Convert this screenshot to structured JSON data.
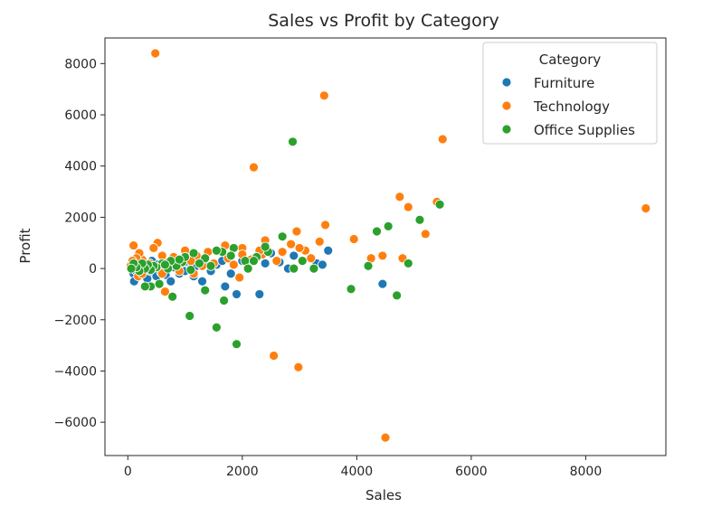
{
  "chart_data": {
    "type": "scatter",
    "title": "Sales vs Profit by Category",
    "xlabel": "Sales",
    "ylabel": "Profit",
    "xlim": [
      -400,
      9400
    ],
    "ylim": [
      -7300,
      9000
    ],
    "xticks": [
      0,
      2000,
      4000,
      6000,
      8000
    ],
    "yticks": [
      -6000,
      -4000,
      -2000,
      0,
      2000,
      4000,
      6000,
      8000
    ],
    "grid": false,
    "legend": {
      "title": "Category",
      "placement": "top-right"
    },
    "series": [
      {
        "name": "Furniture",
        "color": "#1f77b4",
        "points": [
          [
            80,
            50
          ],
          [
            100,
            -200
          ],
          [
            110,
            -500
          ],
          [
            130,
            350
          ],
          [
            150,
            -100
          ],
          [
            160,
            120
          ],
          [
            180,
            20
          ],
          [
            200,
            -300
          ],
          [
            220,
            200
          ],
          [
            250,
            -50
          ],
          [
            270,
            80
          ],
          [
            300,
            -200
          ],
          [
            320,
            150
          ],
          [
            340,
            -400
          ],
          [
            360,
            50
          ],
          [
            380,
            250
          ],
          [
            400,
            -100
          ],
          [
            420,
            300
          ],
          [
            450,
            -50
          ],
          [
            480,
            100
          ],
          [
            500,
            -300
          ],
          [
            520,
            150
          ],
          [
            550,
            50
          ],
          [
            580,
            -150
          ],
          [
            620,
            200
          ],
          [
            660,
            -250
          ],
          [
            700,
            100
          ],
          [
            750,
            -500
          ],
          [
            800,
            50
          ],
          [
            850,
            300
          ],
          [
            900,
            -200
          ],
          [
            950,
            150
          ],
          [
            1000,
            -100
          ],
          [
            1050,
            250
          ],
          [
            1100,
            0
          ],
          [
            1150,
            -300
          ],
          [
            1200,
            100
          ],
          [
            1300,
            -500
          ],
          [
            1350,
            200
          ],
          [
            1450,
            -100
          ],
          [
            1550,
            150
          ],
          [
            1650,
            300
          ],
          [
            1700,
            -700
          ],
          [
            1800,
            -200
          ],
          [
            1900,
            -1000
          ],
          [
            2000,
            300
          ],
          [
            2100,
            100
          ],
          [
            2200,
            400
          ],
          [
            2300,
            -1000
          ],
          [
            2400,
            200
          ],
          [
            2500,
            600
          ],
          [
            2650,
            250
          ],
          [
            2800,
            0
          ],
          [
            2900,
            500
          ],
          [
            3300,
            200
          ],
          [
            3400,
            150
          ],
          [
            3500,
            700
          ],
          [
            4450,
            -600
          ]
        ]
      },
      {
        "name": "Technology",
        "color": "#ff7f0e",
        "points": [
          [
            480,
            8400
          ],
          [
            3430,
            6750
          ],
          [
            5500,
            5050
          ],
          [
            2200,
            3950
          ],
          [
            4750,
            2800
          ],
          [
            5400,
            2600
          ],
          [
            4900,
            2400
          ],
          [
            5200,
            1350
          ],
          [
            9050,
            2350
          ],
          [
            3450,
            1700
          ],
          [
            2950,
            1450
          ],
          [
            3950,
            1150
          ],
          [
            4450,
            500
          ],
          [
            4250,
            400
          ],
          [
            4800,
            400
          ],
          [
            3350,
            1050
          ],
          [
            3100,
            700
          ],
          [
            2850,
            950
          ],
          [
            2400,
            1100
          ],
          [
            2000,
            800
          ],
          [
            1700,
            900
          ],
          [
            1400,
            650
          ],
          [
            1200,
            500
          ],
          [
            1000,
            700
          ],
          [
            800,
            450
          ],
          [
            700,
            250
          ],
          [
            600,
            500
          ],
          [
            520,
            1000
          ],
          [
            450,
            800
          ],
          [
            380,
            200
          ],
          [
            300,
            100
          ],
          [
            250,
            350
          ],
          [
            200,
            600
          ],
          [
            150,
            400
          ],
          [
            100,
            900
          ],
          [
            80,
            300
          ],
          [
            50,
            100
          ],
          [
            180,
            -300
          ],
          [
            250,
            -200
          ],
          [
            600,
            -200
          ],
          [
            650,
            -900
          ],
          [
            900,
            -100
          ],
          [
            1100,
            300
          ],
          [
            1300,
            100
          ],
          [
            1500,
            200
          ],
          [
            1750,
            400
          ],
          [
            1950,
            -350
          ],
          [
            2150,
            350
          ],
          [
            2350,
            550
          ],
          [
            2600,
            300
          ],
          [
            3000,
            800
          ],
          [
            3200,
            400
          ],
          [
            2550,
            -3400
          ],
          [
            2980,
            -3850
          ],
          [
            4500,
            -6600
          ],
          [
            2000,
            550
          ],
          [
            2300,
            700
          ],
          [
            2700,
            650
          ],
          [
            1850,
            150
          ],
          [
            1150,
            -200
          ]
        ]
      },
      {
        "name": "Office Supplies",
        "color": "#2ca02c",
        "points": [
          [
            2880,
            4950
          ],
          [
            5450,
            2500
          ],
          [
            5100,
            1900
          ],
          [
            4550,
            1650
          ],
          [
            4350,
            1450
          ],
          [
            4900,
            200
          ],
          [
            4700,
            -1050
          ],
          [
            3900,
            -800
          ],
          [
            4200,
            100
          ],
          [
            3250,
            0
          ],
          [
            2700,
            1250
          ],
          [
            2450,
            650
          ],
          [
            2250,
            450
          ],
          [
            2050,
            300
          ],
          [
            1850,
            800
          ],
          [
            1650,
            650
          ],
          [
            1550,
            700
          ],
          [
            1350,
            400
          ],
          [
            1150,
            600
          ],
          [
            950,
            250
          ],
          [
            850,
            100
          ],
          [
            750,
            300
          ],
          [
            700,
            0
          ],
          [
            600,
            200
          ],
          [
            500,
            50
          ],
          [
            450,
            100
          ],
          [
            400,
            -50
          ],
          [
            350,
            150
          ],
          [
            300,
            0
          ],
          [
            250,
            200
          ],
          [
            200,
            -100
          ],
          [
            150,
            50
          ],
          [
            100,
            200
          ],
          [
            60,
            0
          ],
          [
            400,
            -700
          ],
          [
            300,
            -700
          ],
          [
            550,
            -600
          ],
          [
            780,
            -1100
          ],
          [
            1080,
            -1850
          ],
          [
            1350,
            -850
          ],
          [
            1550,
            -2300
          ],
          [
            1680,
            -1250
          ],
          [
            1900,
            -2950
          ],
          [
            2100,
            0
          ],
          [
            2400,
            850
          ],
          [
            2900,
            0
          ],
          [
            1250,
            200
          ],
          [
            1000,
            450
          ],
          [
            1800,
            500
          ],
          [
            2200,
            300
          ],
          [
            1450,
            100
          ],
          [
            1100,
            -50
          ],
          [
            900,
            350
          ],
          [
            650,
            150
          ],
          [
            3050,
            300
          ]
        ]
      }
    ]
  }
}
